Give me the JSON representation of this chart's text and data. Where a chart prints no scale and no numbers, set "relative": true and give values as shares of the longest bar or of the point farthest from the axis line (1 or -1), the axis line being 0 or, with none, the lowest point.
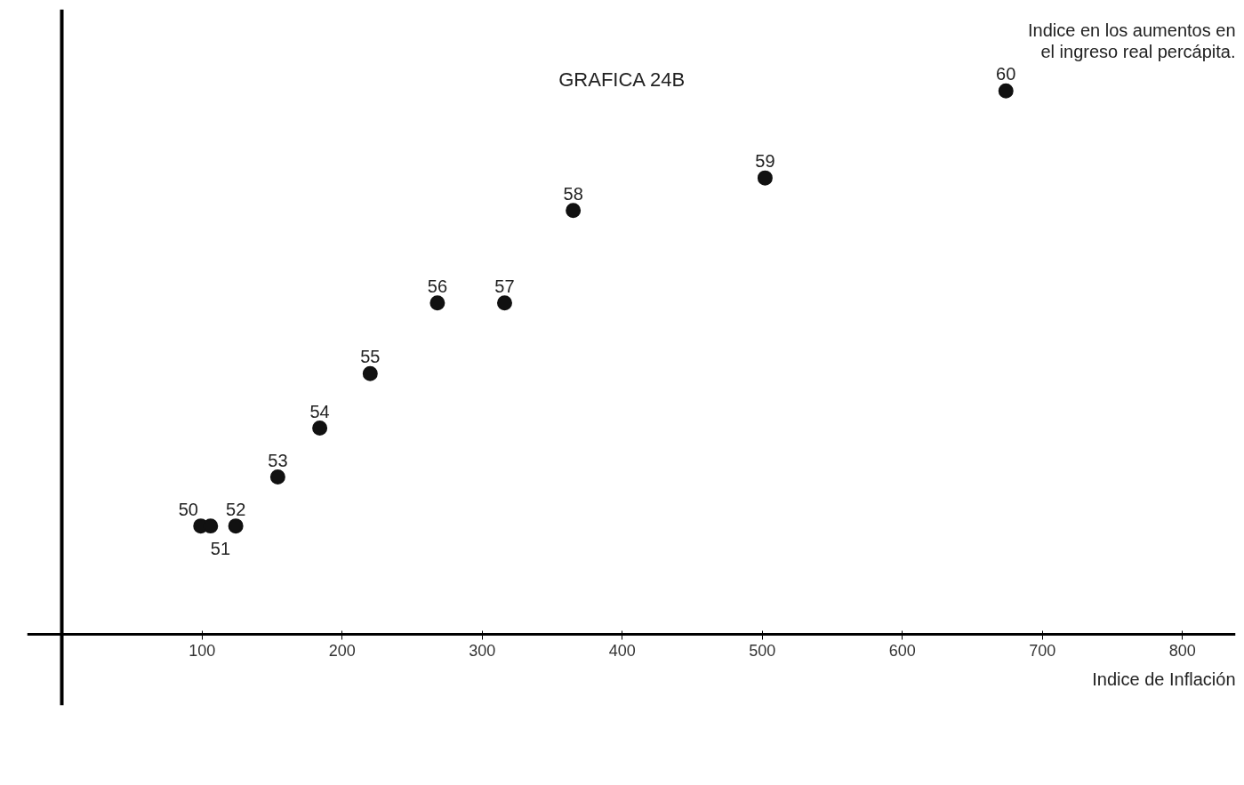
{
  "chart_data": {
    "type": "scatter",
    "title": "GRAFICA 24B",
    "xlabel": "Indice de Inflación",
    "ylabel": "Indice en los aumentos en el ingreso real percápita.",
    "relative": true,
    "marker": "circle",
    "grid": false,
    "xlim": [
      -25,
      838
    ],
    "xticks": [
      100,
      200,
      300,
      400,
      500,
      600,
      700,
      800
    ],
    "x": [
      99,
      106,
      124,
      154,
      184,
      220,
      268,
      316,
      365,
      502,
      674
    ],
    "series": [
      {
        "color": "#111111",
        "values": [
          0.2,
          0.2,
          0.2,
          0.29,
          0.38,
          0.48,
          0.61,
          0.61,
          0.78,
          0.84,
          1.0
        ]
      }
    ],
    "annotations": [
      {
        "text": "50",
        "x": 99,
        "y": 0.2
      },
      {
        "text": "51",
        "x": 106,
        "y": 0.2
      },
      {
        "text": "52",
        "x": 124,
        "y": 0.2
      },
      {
        "text": "53",
        "x": 154,
        "y": 0.29
      },
      {
        "text": "54",
        "x": 184,
        "y": 0.38
      },
      {
        "text": "55",
        "x": 220,
        "y": 0.48
      },
      {
        "text": "56",
        "x": 268,
        "y": 0.61
      },
      {
        "text": "57",
        "x": 316,
        "y": 0.61
      },
      {
        "text": "58",
        "x": 365,
        "y": 0.78
      },
      {
        "text": "59",
        "x": 502,
        "y": 0.84
      },
      {
        "text": "60",
        "x": 674,
        "y": 1.0
      }
    ]
  }
}
